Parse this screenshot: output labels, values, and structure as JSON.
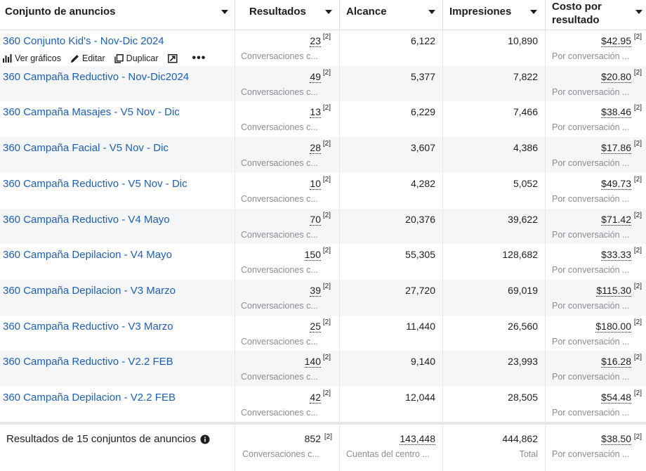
{
  "columns": {
    "name": "Conjunto de anuncios",
    "results": "Resultados",
    "reach": "Alcance",
    "impressions": "Impresiones",
    "cost_line1": "Costo por",
    "cost_line2": "resultado"
  },
  "row_actions": {
    "charts": "Ver gráficos",
    "edit": "Editar",
    "duplicate": "Duplicar",
    "more": "•••"
  },
  "badge": "[2]",
  "result_sub": "Conversaciones c...",
  "cost_sub": "Por conversación ...",
  "rows": [
    {
      "name": "360 Conjunto Kid's - Nov-Dic 2024",
      "results": "23",
      "reach": "6,122",
      "impressions": "10,890",
      "cost": "$42.95"
    },
    {
      "name": "360 Campaña Reductivo - Nov-Dic2024",
      "results": "49",
      "reach": "5,377",
      "impressions": "7,822",
      "cost": "$20.80"
    },
    {
      "name": "360 Campaña Masajes - V5 Nov - Dic",
      "results": "13",
      "reach": "6,229",
      "impressions": "7,466",
      "cost": "$38.46"
    },
    {
      "name": "360 Campaña Facial - V5 Nov - Dic",
      "results": "28",
      "reach": "3,607",
      "impressions": "4,386",
      "cost": "$17.86"
    },
    {
      "name": "360 Campaña Reductivo - V5 Nov - Dic",
      "results": "10",
      "reach": "4,282",
      "impressions": "5,052",
      "cost": "$49.73"
    },
    {
      "name": "360 Campaña Reductivo - V4 Mayo",
      "results": "70",
      "reach": "20,376",
      "impressions": "39,622",
      "cost": "$71.42"
    },
    {
      "name": "360 Campaña Depilacion - V4 Mayo",
      "results": "150",
      "reach": "55,305",
      "impressions": "128,682",
      "cost": "$33.33"
    },
    {
      "name": "360 Campaña Depilacion - V3 Marzo",
      "results": "39",
      "reach": "27,720",
      "impressions": "69,019",
      "cost": "$115.30"
    },
    {
      "name": "360 Campaña Reductivo - V3 Marzo",
      "results": "25",
      "reach": "11,440",
      "impressions": "26,560",
      "cost": "$180.00"
    },
    {
      "name": "360 Campaña Reductivo - V2.2 FEB",
      "results": "140",
      "reach": "9,140",
      "impressions": "23,993",
      "cost": "$16.28"
    },
    {
      "name": "360 Campaña Depilacion - V2.2 FEB",
      "results": "42",
      "reach": "12,044",
      "impressions": "28,505",
      "cost": "$54.48"
    }
  ],
  "footer": {
    "label": "Resultados de 15 conjuntos de anuncios",
    "results": "852",
    "results_sub": "Conversaciones c...",
    "reach": "143,448",
    "reach_sub": "Cuentas del centro ...",
    "impressions": "444,862",
    "impressions_sub": "Total",
    "cost": "$38.50",
    "cost_sub": "Por conversación ..."
  },
  "colors": {
    "link": "#1d5fb8",
    "muted": "#8a8d91",
    "alt_row": "#f5f6f7",
    "border": "#dadde1"
  },
  "icons": [
    "chart-icon",
    "pencil-icon",
    "duplicate-icon",
    "external-link-icon",
    "info-icon",
    "caret-down-icon"
  ]
}
